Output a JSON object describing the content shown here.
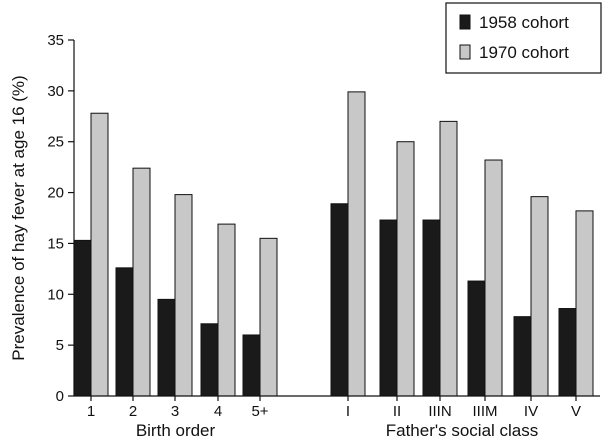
{
  "chart_data": {
    "type": "bar",
    "ylabel": "Prevalence of hay fever at age 16 (%)",
    "ylim": [
      0,
      35
    ],
    "yticks": [
      0,
      5,
      10,
      15,
      20,
      25,
      30,
      35
    ],
    "grid": false,
    "legend_position": "top-right",
    "series": [
      {
        "name": "1958 cohort",
        "color": "#1a1a1a"
      },
      {
        "name": "1970 cohort",
        "color": "#c8c8c8"
      }
    ],
    "groups": [
      {
        "label": "Birth order",
        "categories": [
          "1",
          "2",
          "3",
          "4",
          "5+"
        ],
        "values": {
          "1958 cohort": [
            15.3,
            12.6,
            9.5,
            7.1,
            6.0
          ],
          "1970 cohort": [
            27.8,
            22.4,
            19.8,
            16.9,
            15.5
          ]
        }
      },
      {
        "label": "Father's social class",
        "categories": [
          "I",
          "II",
          "IIIN",
          "IIIM",
          "IV",
          "V"
        ],
        "values": {
          "1958 cohort": [
            18.9,
            17.3,
            17.3,
            11.3,
            7.8,
            8.6
          ],
          "1970 cohort": [
            29.9,
            25.0,
            27.0,
            23.2,
            19.6,
            18.2
          ]
        }
      }
    ]
  }
}
